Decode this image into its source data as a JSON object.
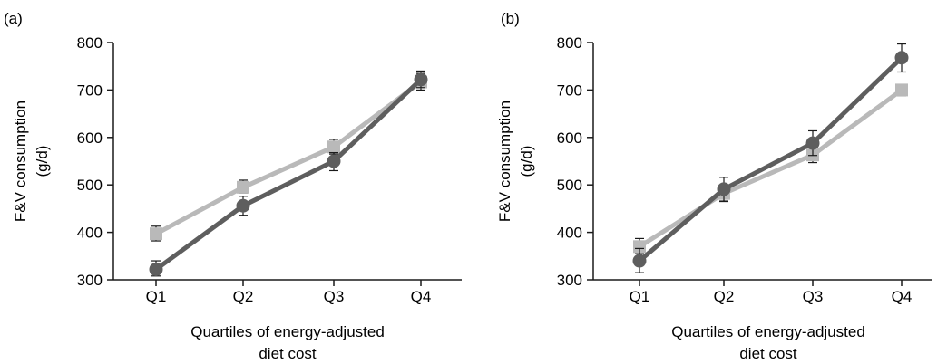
{
  "chart_data": [
    {
      "panel_label": "(a)",
      "type": "line",
      "categories": [
        "Q1",
        "Q2",
        "Q3",
        "Q4"
      ],
      "xlabel": [
        "Quartiles of energy-adjusted",
        "diet cost"
      ],
      "ylabel": [
        "F&V consumption",
        "(g/d)"
      ],
      "ylim": [
        300,
        800
      ],
      "yticks": [
        300,
        400,
        500,
        600,
        700,
        800
      ],
      "grid": false,
      "series": [
        {
          "marker": "square",
          "color": "#b9b9b9",
          "values": [
            397,
            495,
            580,
            717
          ],
          "error": [
            [
              382,
              413
            ],
            [
              483,
              510
            ],
            [
              565,
              596
            ],
            [
              700,
              735
            ]
          ]
        },
        {
          "marker": "circle",
          "color": "#5e5e5e",
          "values": [
            322,
            456,
            550,
            722
          ],
          "error": [
            [
              308,
              340
            ],
            [
              436,
              476
            ],
            [
              530,
              568
            ],
            [
              705,
              740
            ]
          ]
        }
      ]
    },
    {
      "panel_label": "(b)",
      "type": "line",
      "categories": [
        "Q1",
        "Q2",
        "Q3",
        "Q4"
      ],
      "xlabel": [
        "Quartiles of energy-adjusted",
        "diet cost"
      ],
      "ylabel": [
        "F&V consumption",
        "(g/d)"
      ],
      "ylim": [
        300,
        800
      ],
      "yticks": [
        300,
        400,
        500,
        600,
        700,
        800
      ],
      "grid": false,
      "series": [
        {
          "marker": "square",
          "color": "#b9b9b9",
          "values": [
            370,
            482,
            563,
            700
          ],
          "error": [
            [
              355,
              387
            ],
            [
              466,
              497
            ],
            [
              547,
              578
            ],
            [
              688,
              712
            ]
          ]
        },
        {
          "marker": "circle",
          "color": "#5e5e5e",
          "values": [
            340,
            491,
            588,
            768
          ],
          "error": [
            [
              315,
              366
            ],
            [
              465,
              516
            ],
            [
              562,
              614
            ],
            [
              738,
              797
            ]
          ]
        }
      ]
    }
  ]
}
